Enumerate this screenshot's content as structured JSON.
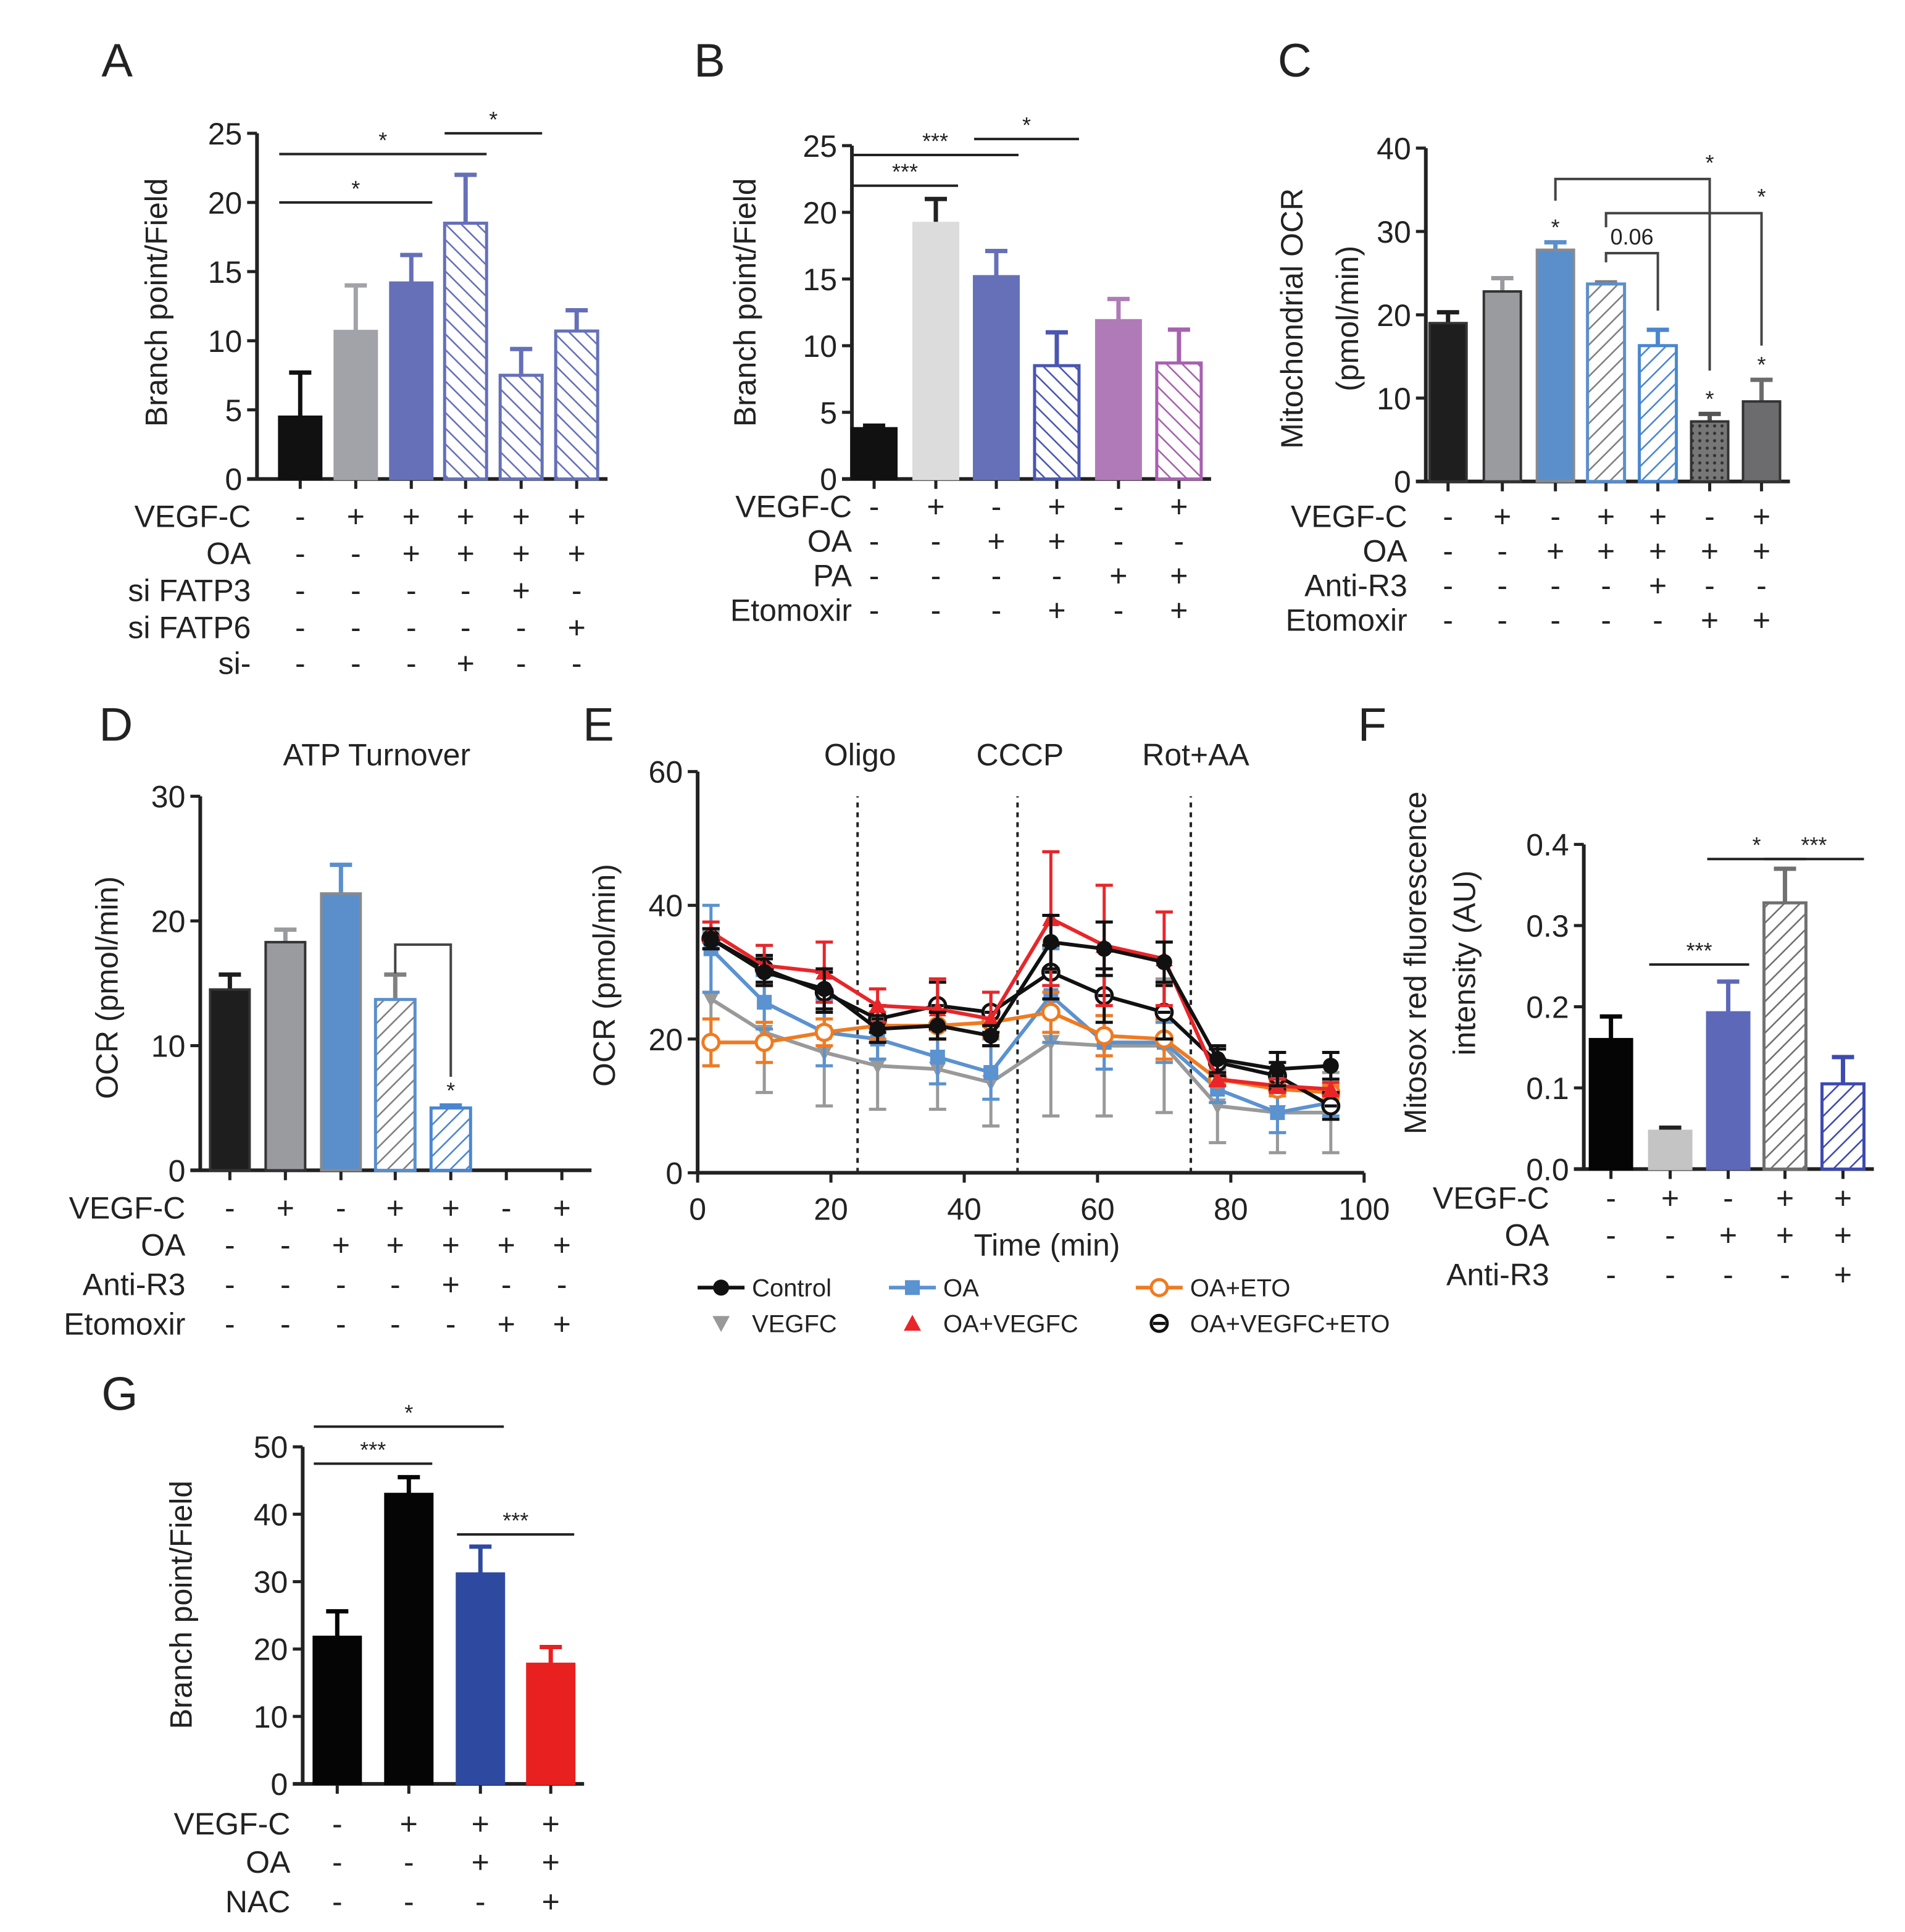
{
  "chart_data": [
    {
      "panel": "A",
      "type": "bar",
      "ylabel": "Branch point/Field",
      "ylim": [
        0,
        25
      ],
      "yticks": [
        "0",
        "5",
        "10",
        "15",
        "20",
        "25"
      ],
      "values": [
        4.5,
        10.7,
        14.2,
        18.5,
        7.5,
        10.7
      ],
      "errors": [
        3.2,
        3.3,
        2.0,
        3.5,
        1.9,
        1.5
      ],
      "colors": [
        "#111111",
        "#a2a3a8",
        "#6570b8",
        "#6570b8",
        "#6570b8",
        "#6570b8"
      ],
      "hatched": [
        false,
        false,
        false,
        true,
        true,
        true
      ],
      "conditions": [
        {
          "label": "VEGF-C",
          "signs": [
            "-",
            "+",
            "+",
            "+",
            "+",
            "+"
          ]
        },
        {
          "label": "OA",
          "signs": [
            "-",
            "-",
            "+",
            "+",
            "+",
            "+"
          ]
        },
        {
          "label": "si FATP3",
          "signs": [
            "-",
            "-",
            "-",
            "-",
            "+",
            "-"
          ]
        },
        {
          "label": "si FATP6",
          "signs": [
            "-",
            "-",
            "-",
            "-",
            "-",
            "+"
          ]
        },
        {
          "label": "si-",
          "signs": [
            "-",
            "-",
            "-",
            "+",
            "-",
            "-"
          ]
        }
      ],
      "significance": [
        {
          "from": 0,
          "to": 2,
          "level": 20,
          "label": "*"
        },
        {
          "from": 0,
          "to": 3,
          "level": 23.5,
          "label": "*"
        },
        {
          "from": 3,
          "to": 4,
          "level": 25,
          "label": "*"
        }
      ]
    },
    {
      "panel": "B",
      "type": "bar",
      "ylabel": "Branch point/Field",
      "ylim": [
        0,
        25
      ],
      "yticks": [
        "0",
        "5",
        "10",
        "15",
        "20",
        "25"
      ],
      "values": [
        3.8,
        19.2,
        15.2,
        8.5,
        11.9,
        8.7
      ],
      "errors": [
        0.2,
        1.8,
        1.9,
        2.5,
        1.6,
        2.5
      ],
      "colors": [
        "#111111",
        "#dcdcdc",
        "#6570b8",
        "#4a56b0",
        "#b07ab8",
        "#a860b0"
      ],
      "hatched": [
        false,
        false,
        false,
        true,
        false,
        true
      ],
      "conditions": [
        {
          "label": "VEGF-C",
          "signs": [
            "-",
            "+",
            "-",
            "+",
            "-",
            "+"
          ]
        },
        {
          "label": "OA",
          "signs": [
            "-",
            "-",
            "+",
            "+",
            "-",
            "-"
          ]
        },
        {
          "label": "PA",
          "signs": [
            "-",
            "-",
            "-",
            "-",
            "+",
            "+"
          ]
        },
        {
          "label": "Etomoxir",
          "signs": [
            "-",
            "-",
            "-",
            "+",
            "-",
            "+"
          ]
        }
      ],
      "significance": [
        {
          "from": 0,
          "to": 1,
          "level": 22,
          "label": "***"
        },
        {
          "from": 0,
          "to": 2,
          "level": 24.3,
          "label": "***"
        },
        {
          "from": 2,
          "to": 3,
          "level": 25.5,
          "label": "*"
        }
      ]
    },
    {
      "panel": "C",
      "type": "bar",
      "ylabel": [
        "Mitochondrial OCR",
        "(pmol/min)"
      ],
      "ylim": [
        0,
        40
      ],
      "yticks": [
        "0",
        "10",
        "20",
        "30",
        "40"
      ],
      "values": [
        19.0,
        22.8,
        27.8,
        23.7,
        16.3,
        7.2,
        9.6
      ],
      "errors": [
        1.3,
        1.6,
        0.9,
        0.2,
        1.9,
        0.9,
        2.6
      ],
      "colors": [
        "#1e1e1e",
        "#9a9b9f",
        "#5b8fcc",
        "#808080",
        "#4a86d0",
        "#555555",
        "#6c6c6e"
      ],
      "hatched": [
        false,
        false,
        false,
        true,
        true,
        false,
        false
      ],
      "dotted": [
        false,
        false,
        false,
        false,
        false,
        true,
        false
      ],
      "conditions": [
        {
          "label": "VEGF-C",
          "signs": [
            "-",
            "+",
            "-",
            "+",
            "+",
            "-",
            "+"
          ]
        },
        {
          "label": "OA",
          "signs": [
            "-",
            "-",
            "+",
            "+",
            "+",
            "+",
            "+"
          ]
        },
        {
          "label": "Anti-R3",
          "signs": [
            "-",
            "-",
            "-",
            "-",
            "+",
            "-",
            "-"
          ]
        },
        {
          "label": "Etomoxir",
          "signs": [
            "-",
            "-",
            "-",
            "-",
            "-",
            "+",
            "+"
          ]
        }
      ],
      "bar_stars": [
        "",
        "",
        "*",
        "",
        "",
        "*",
        "*"
      ],
      "brackets": [
        {
          "from": 3,
          "to": 4,
          "level": 27.4,
          "drop_from": 26.3,
          "drop_to": 20.5,
          "label": "0.06"
        },
        {
          "from": 2,
          "to": 5,
          "level": 36.3,
          "drop_from": 33.7,
          "drop_to": 13.3,
          "label": "*"
        },
        {
          "from": 3,
          "to": 6,
          "level": 32.2,
          "drop_from": 30.5,
          "drop_to": 16.3,
          "label": "*"
        }
      ]
    },
    {
      "panel": "D",
      "type": "bar",
      "title": "ATP Turnover",
      "ylabel": "OCR (pmol/min)",
      "ylim": [
        0,
        30
      ],
      "yticks": [
        "0",
        "10",
        "20",
        "30"
      ],
      "values": [
        14.5,
        18.3,
        22.2,
        13.7,
        5.0,
        null,
        null
      ],
      "errors": [
        1.2,
        1.0,
        2.3,
        2.0,
        0.2,
        null,
        null
      ],
      "colors": [
        "#1e1e1e",
        "#9a9b9f",
        "#5b8fcc",
        "#808080",
        "#4a86d0",
        "#555555",
        "#555555"
      ],
      "hatched": [
        false,
        false,
        false,
        true,
        true,
        false,
        false
      ],
      "conditions": [
        {
          "label": "VEGF-C",
          "signs": [
            "-",
            "+",
            "-",
            "+",
            "+",
            "-",
            "+"
          ]
        },
        {
          "label": "OA",
          "signs": [
            "-",
            "-",
            "+",
            "+",
            "+",
            "+",
            "+"
          ]
        },
        {
          "label": "Anti-R3",
          "signs": [
            "-",
            "-",
            "-",
            "-",
            "+",
            "-",
            "-"
          ]
        },
        {
          "label": "Etomoxir",
          "signs": [
            "-",
            "-",
            "-",
            "-",
            "-",
            "+",
            "+"
          ]
        }
      ],
      "bar_stars": [
        "",
        "",
        "",
        "",
        "*",
        "",
        ""
      ],
      "brackets": [
        {
          "from": 3,
          "to": 4,
          "level": 18.1,
          "drop_from": 15.8,
          "drop_to": 7.5,
          "label": ""
        }
      ]
    },
    {
      "panel": "E",
      "type": "line",
      "xlabel": "Time (min)",
      "ylabel": "OCR (pmol/min)",
      "xlim": [
        0,
        100
      ],
      "ylim": [
        0,
        60
      ],
      "xticks": [
        "0",
        "20",
        "40",
        "60",
        "80",
        "100"
      ],
      "yticks": [
        "0",
        "20",
        "40",
        "60"
      ],
      "injections": [
        {
          "label": "Oligo",
          "x": 24
        },
        {
          "label": "CCCP",
          "x": 48
        },
        {
          "label": "Rot+AA",
          "x": 74
        }
      ],
      "x": [
        2,
        10,
        19,
        27,
        36,
        44,
        53,
        61,
        70,
        78,
        87,
        95
      ],
      "series": [
        {
          "name": "Control",
          "color": "#111111",
          "marker": "circle",
          "values": [
            35,
            30,
            27.5,
            21.5,
            22,
            20.5,
            34.5,
            33.5,
            31.5,
            17,
            15.5,
            16
          ],
          "errors": [
            1.5,
            2,
            3,
            2,
            2,
            1.5,
            4,
            4,
            3,
            2,
            2.5,
            2
          ]
        },
        {
          "name": "OA",
          "color": "#5b92d0",
          "marker": "square",
          "values": [
            33.5,
            25.5,
            21,
            20,
            17.3,
            15,
            26.5,
            19.5,
            19.5,
            12.5,
            9,
            10.5
          ],
          "errors": [
            6.5,
            4,
            5,
            3,
            4,
            4,
            7,
            4,
            3,
            2,
            3,
            2
          ]
        },
        {
          "name": "OA+ETO",
          "color": "#f07a20",
          "marker": "open-circle",
          "values": [
            19.5,
            19.5,
            21,
            22,
            22,
            22.5,
            24,
            20.5,
            20,
            14,
            12.5,
            12
          ],
          "errors": [
            3.5,
            3,
            2,
            2,
            2,
            2,
            3,
            3,
            3,
            1,
            1,
            1
          ]
        },
        {
          "name": "VEGFC",
          "color": "#999999",
          "marker": "triangle-down",
          "values": [
            26,
            21,
            18,
            16,
            15.5,
            13.5,
            19.5,
            19,
            19,
            10,
            9,
            9
          ],
          "errors": [
            10,
            9,
            8,
            6.5,
            6,
            6.5,
            11,
            10.5,
            10,
            5.5,
            6,
            6
          ]
        },
        {
          "name": "OA+VEGFC",
          "color": "#e8262a",
          "marker": "triangle-up",
          "values": [
            36,
            31,
            30,
            25,
            24.5,
            23,
            38,
            34,
            32,
            14,
            13,
            12.5
          ],
          "errors": [
            1.5,
            3,
            4.5,
            2.5,
            4.5,
            4,
            10,
            9,
            7,
            1,
            1,
            1
          ]
        },
        {
          "name": "OA+VEGFC+ETO",
          "color": "#111111",
          "marker": "circle-minus",
          "values": [
            35,
            30.5,
            27,
            23,
            25,
            24,
            30,
            26.5,
            24,
            16.5,
            14.5,
            10
          ],
          "errors": [
            1.5,
            2,
            3,
            2,
            3.5,
            3,
            4,
            4,
            4,
            2,
            2,
            2
          ]
        }
      ]
    },
    {
      "panel": "F",
      "type": "bar",
      "ylabel": [
        "Mitosox red fluorescence",
        "intensity  (AU)"
      ],
      "ylim": [
        0,
        0.4
      ],
      "yticks": [
        "0.0",
        "0.1",
        "0.2",
        "0.3",
        "0.4"
      ],
      "values": [
        0.16,
        0.047,
        0.193,
        0.328,
        0.105
      ],
      "errors": [
        0.028,
        0.004,
        0.038,
        0.042,
        0.033
      ],
      "colors": [
        "#050505",
        "#c4c4c4",
        "#5d68b8",
        "#707070",
        "#3d4ab0"
      ],
      "hatched": [
        false,
        false,
        false,
        true,
        true
      ],
      "conditions": [
        {
          "label": "VEGF-C",
          "signs": [
            "-",
            "+",
            "-",
            "+",
            "+"
          ]
        },
        {
          "label": "OA",
          "signs": [
            "-",
            "-",
            "+",
            "+",
            "+"
          ]
        },
        {
          "label": "Anti-R3",
          "signs": [
            "-",
            "-",
            "-",
            "-",
            "+"
          ]
        }
      ],
      "significance": [
        {
          "from": 1,
          "to": 2,
          "level": 0.252,
          "label": "***"
        },
        {
          "from": 2,
          "to": 3,
          "level": 0.382,
          "label": "*"
        },
        {
          "from": 3,
          "to": 4,
          "level": 0.382,
          "label": "***"
        }
      ]
    },
    {
      "panel": "G",
      "type": "bar",
      "ylabel": "Branch point/Field",
      "ylim": [
        0,
        50
      ],
      "yticks": [
        "0",
        "10",
        "20",
        "30",
        "40",
        "50"
      ],
      "values": [
        21.8,
        43.0,
        31.2,
        17.8
      ],
      "errors": [
        3.8,
        2.5,
        4.0,
        2.5
      ],
      "colors": [
        "#050505",
        "#050505",
        "#2e4aa0",
        "#e82020"
      ],
      "hatched": [
        false,
        false,
        false,
        false
      ],
      "conditions": [
        {
          "label": "VEGF-C",
          "signs": [
            "-",
            "+",
            "+",
            "+"
          ]
        },
        {
          "label": "OA",
          "signs": [
            "-",
            "-",
            "+",
            "+"
          ]
        },
        {
          "label": "NAC",
          "signs": [
            "-",
            "-",
            "-",
            "+"
          ]
        }
      ],
      "significance": [
        {
          "from": 0,
          "to": 1,
          "level": 47.5,
          "label": "***"
        },
        {
          "from": 0,
          "to": 2,
          "level": 53,
          "label": "*"
        },
        {
          "from": 2,
          "to": 3,
          "level": 37,
          "label": "***"
        }
      ]
    }
  ]
}
